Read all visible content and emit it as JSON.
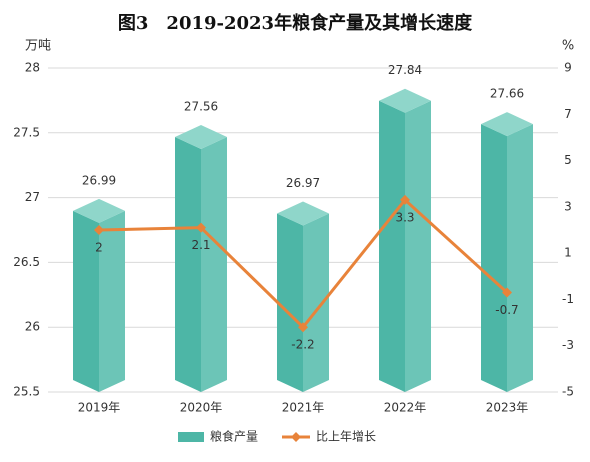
{
  "chart_data": {
    "type": "bar",
    "title": "图3　2019-2023年粮食产量及其增长速度",
    "y_label": "万吨",
    "y2_label": "%",
    "categories": [
      "2019年",
      "2020年",
      "2021年",
      "2022年",
      "2023年"
    ],
    "series": [
      {
        "name": "粮食产量",
        "color": "#4db6a6",
        "values": [
          26.99,
          27.56,
          26.97,
          27.84,
          27.66
        ]
      },
      {
        "name": "比上年增长",
        "type": "line",
        "color": "#e8833a",
        "axis": "y2",
        "values": [
          2,
          2.1,
          -2.2,
          3.3,
          -0.7
        ]
      }
    ],
    "ylim": [
      25.5,
      28
    ],
    "yticks": [
      25.5,
      26,
      26.5,
      27,
      27.5,
      28
    ],
    "y2lim": [
      -5,
      9
    ],
    "y2ticks": [
      -5,
      -3,
      -1,
      1,
      3,
      5,
      7,
      9
    ],
    "grid": true
  }
}
